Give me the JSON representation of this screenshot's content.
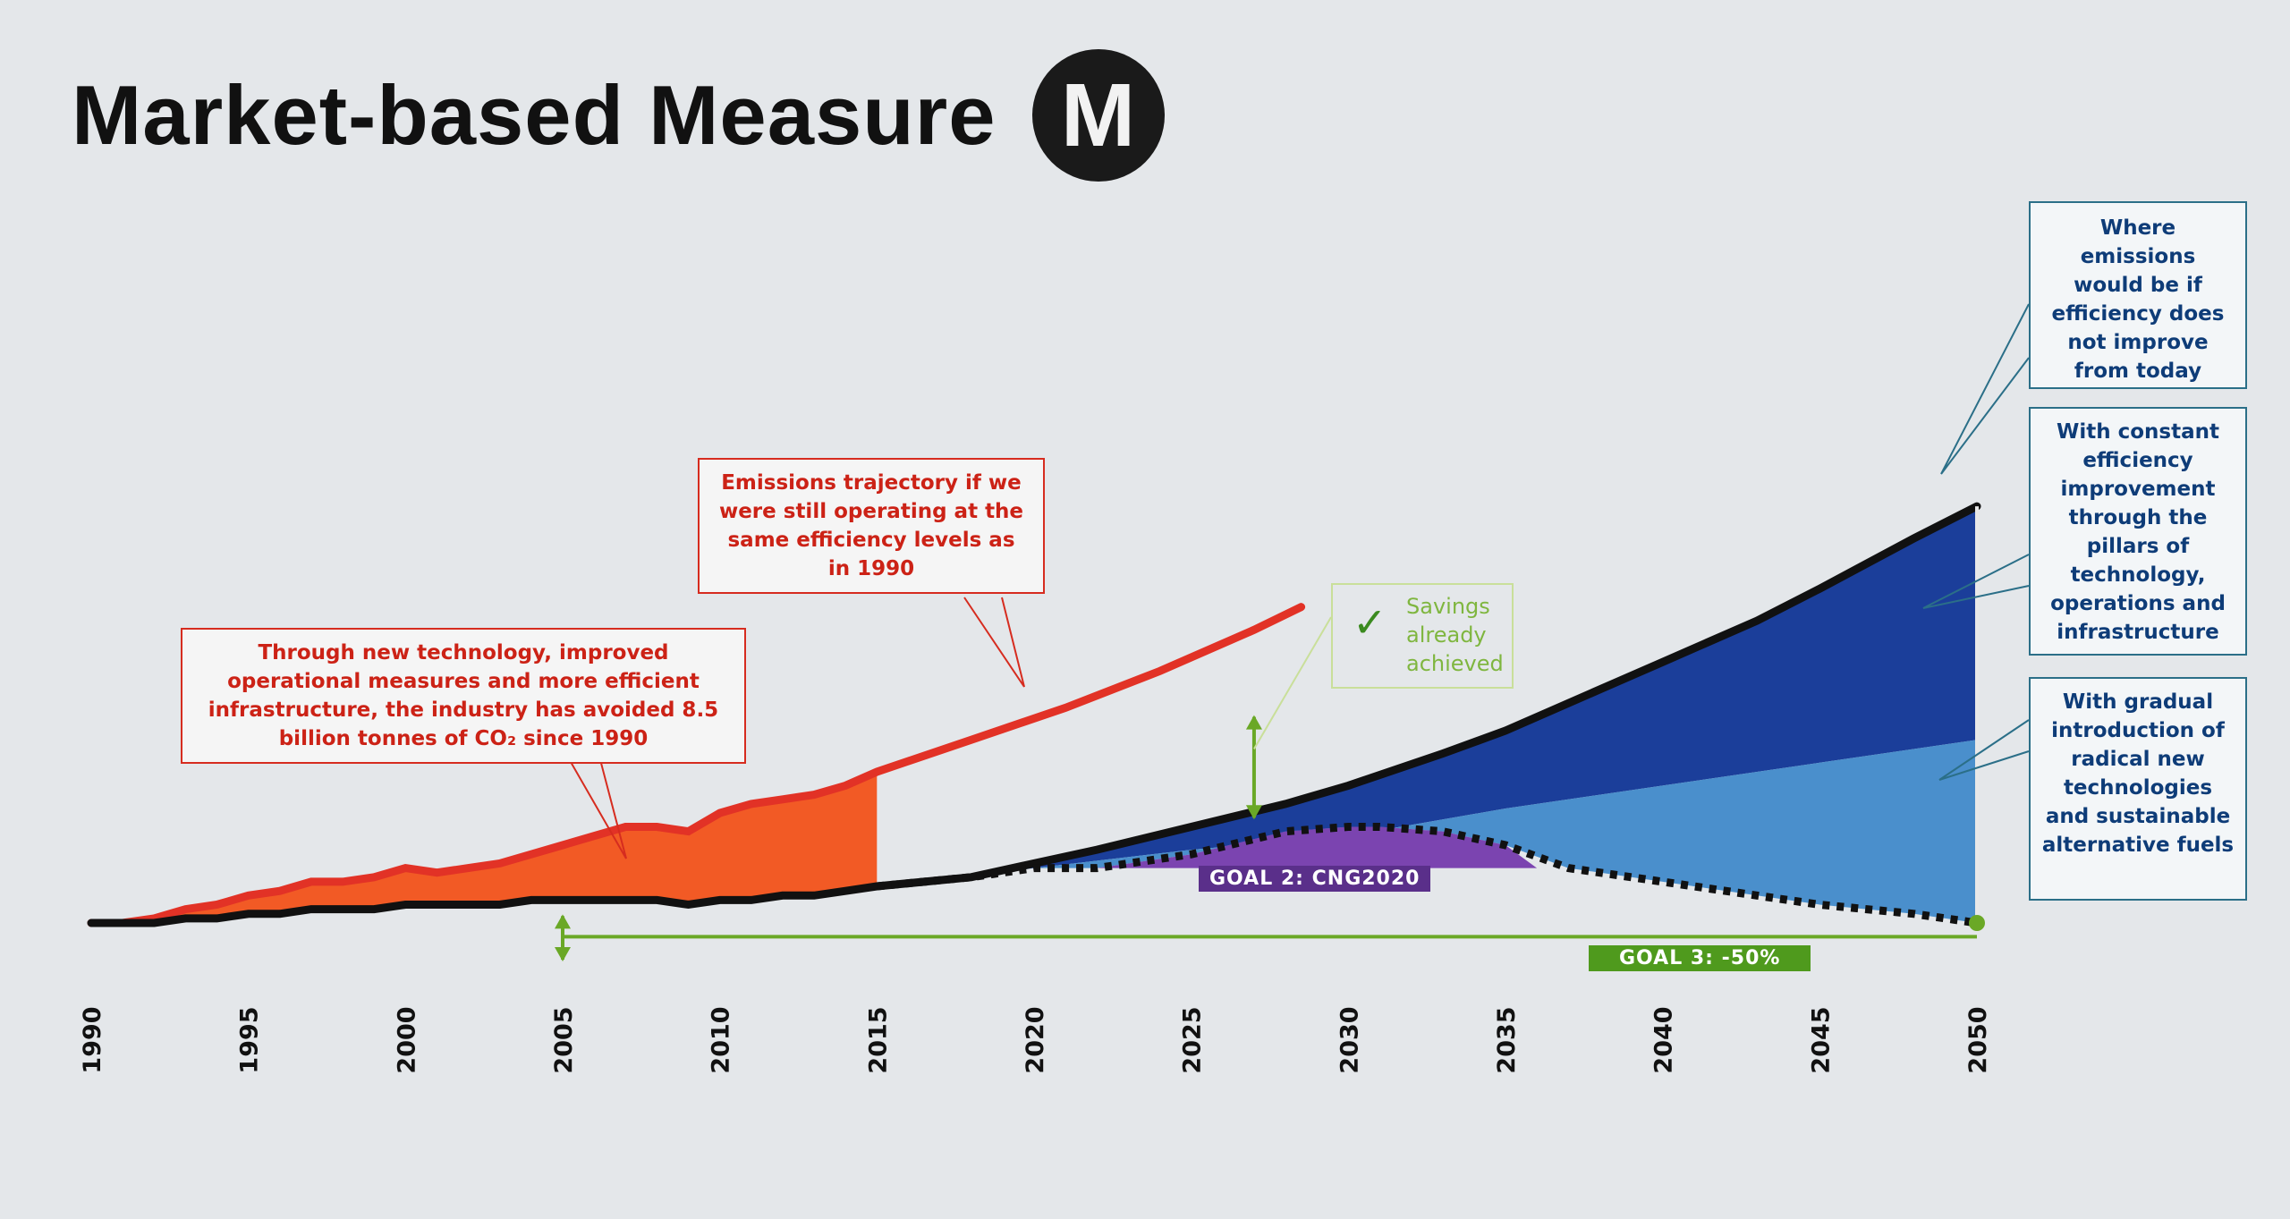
{
  "title": "Market-based Measure",
  "badge": "M",
  "colors": {
    "red": "#e23226",
    "orange": "#f25a25",
    "dark_blue": "#1b3e9a",
    "light_blue": "#4a8fcc",
    "purple": "#7b44b0",
    "green": "#6aa826",
    "black": "#111111"
  },
  "annotations": {
    "avoided": "Through new technology, improved operational measures and more efficient infrastructure, the industry has avoided 8.5 billion tonnes of CO₂ since 1990",
    "trajectory": "Emissions trajectory if we were still operating at the same efficiency levels as in 1990",
    "savings": "Savings already achieved",
    "where_emissions": "Where emissions would be if efficiency does not improve from today",
    "constant_efficiency": "With constant efficiency improvement through the pillars of technology, operations and infrastructure",
    "gradual_intro": "With gradual introduction of radical new technologies and sustainable alternative fuels",
    "goal2": "GOAL 2: CNG2020",
    "goal3": "GOAL 3: -50%"
  },
  "chart_data": {
    "type": "area",
    "x_ticks": [
      1990,
      1995,
      2000,
      2005,
      2010,
      2015,
      2020,
      2025,
      2030,
      2035,
      2040,
      2045,
      2050
    ],
    "xlim": [
      1990,
      2050
    ],
    "ylim": [
      0,
      100
    ],
    "series": [
      {
        "x": [
          1990,
          1991,
          1992,
          1993,
          1994,
          1995,
          1996,
          1997,
          1998,
          1999,
          2000,
          2001,
          2002,
          2003,
          2004,
          2005,
          2006,
          2007,
          2008,
          2009,
          2010,
          2011,
          2012,
          2013,
          2014,
          2015
        ],
        "y": [
          0,
          0,
          0,
          1,
          1,
          2,
          2,
          3,
          3,
          3,
          4,
          4,
          4,
          4,
          5,
          5,
          5,
          5,
          5,
          4,
          5,
          5,
          6,
          6,
          7,
          8
        ]
      },
      {
        "x": [
          1990,
          1991,
          1992,
          1993,
          1994,
          1995,
          1996,
          1997,
          1998,
          1999,
          2000,
          2001,
          2002,
          2003,
          2004,
          2005,
          2006,
          2007,
          2008,
          2009,
          2010,
          2011,
          2012,
          2013,
          2014,
          2015,
          2018,
          2021,
          2024,
          2027,
          2028.5
        ],
        "y": [
          0,
          0,
          1,
          3,
          4,
          6,
          7,
          9,
          9,
          10,
          12,
          11,
          12,
          13,
          15,
          17,
          19,
          21,
          21,
          20,
          24,
          26,
          27,
          28,
          30,
          33,
          40,
          47,
          55,
          64,
          69
        ]
      },
      {
        "x": [
          2015,
          2018,
          2020,
          2022,
          2025,
          2028,
          2030,
          2033,
          2035,
          2038,
          2040,
          2043,
          2045,
          2048,
          2050
        ],
        "y": [
          8,
          10,
          13,
          16,
          21,
          26,
          30,
          37,
          42,
          51,
          57,
          66,
          73,
          84,
          91
        ]
      },
      {
        "x": [
          2015,
          2020,
          2025,
          2030,
          2035,
          2040,
          2045,
          2050
        ],
        "y": [
          8,
          12,
          16,
          19,
          25,
          30,
          35,
          40
        ]
      },
      {
        "x": [
          2015,
          2018,
          2020,
          2022,
          2025,
          2028,
          2030,
          2031,
          2033,
          2035,
          2037,
          2040,
          2043,
          2045,
          2048,
          2050
        ],
        "y": [
          8,
          10,
          12,
          12,
          15,
          20,
          21,
          21,
          20,
          17,
          12,
          9,
          6,
          4,
          2,
          0
        ]
      },
      {
        "x": [
          2021,
          2025,
          2030,
          2033,
          2036
        ],
        "y": [
          12,
          12,
          12,
          12,
          12
        ]
      }
    ]
  }
}
